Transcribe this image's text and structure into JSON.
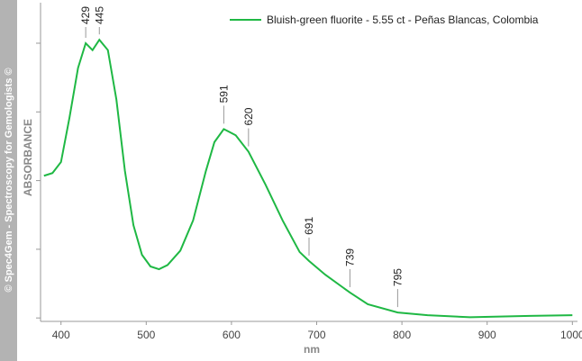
{
  "watermark": "© Spec4Gem - Spectroscopy for Gemologists ©",
  "chart_data": {
    "type": "line",
    "x_label": "nm",
    "y_label": "ABSORBANCE",
    "x": [
      380,
      390,
      400,
      410,
      420,
      429,
      437,
      445,
      455,
      465,
      475,
      485,
      495,
      505,
      515,
      525,
      540,
      555,
      570,
      580,
      591,
      605,
      620,
      640,
      660,
      680,
      691,
      710,
      739,
      760,
      795,
      830,
      880,
      950,
      1000
    ],
    "series": [
      {
        "name": "Bluish-green fluorite - 5.55 ct - Peñas Blancas, Colombia",
        "color": "#1fb844",
        "values": [
          2.07,
          2.11,
          2.27,
          2.92,
          3.64,
          4.0,
          3.9,
          4.05,
          3.9,
          3.18,
          2.14,
          1.35,
          0.92,
          0.75,
          0.71,
          0.77,
          0.98,
          1.42,
          2.14,
          2.56,
          2.75,
          2.66,
          2.42,
          1.94,
          1.42,
          0.96,
          0.83,
          0.63,
          0.37,
          0.2,
          0.08,
          0.04,
          0.01,
          0.03,
          0.04
        ]
      }
    ],
    "peaks": [
      429,
      445,
      591,
      620,
      691,
      739,
      795
    ],
    "xlim": [
      376,
      1006
    ],
    "xticks": [
      400,
      500,
      600,
      700,
      800,
      900,
      1000
    ],
    "ylim": [
      -0.05,
      4.59
    ],
    "yticks": [
      0,
      1,
      2,
      3,
      4
    ],
    "legend": "upper right"
  }
}
